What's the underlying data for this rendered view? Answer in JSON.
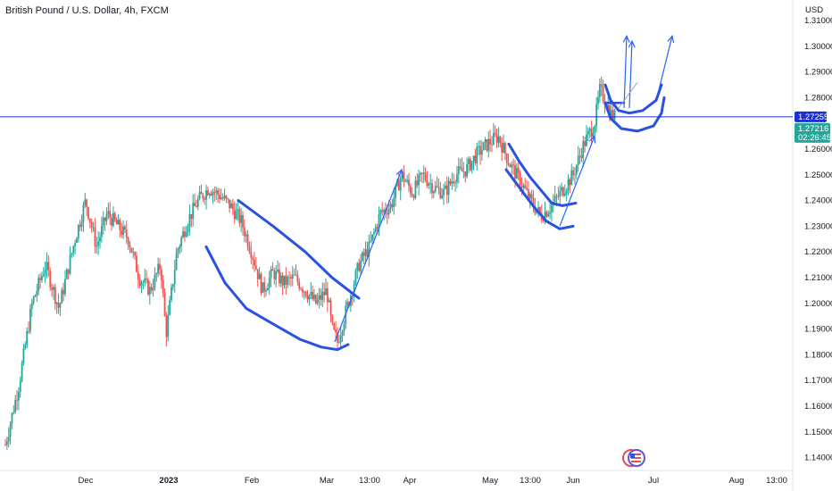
{
  "header": {
    "title": "British Pound / U.S. Dollar, 4h, FXCM"
  },
  "axis": {
    "currency": "USD",
    "price_line": "1.27255",
    "last_price": "1.27216",
    "countdown": "02:26:45"
  },
  "colors": {
    "up": "#26a69a",
    "down": "#ef5350",
    "drawing": "#2952e3",
    "arrow": "#2962ff",
    "price_line": "#1c2fd3",
    "last_tag": "#26a69a"
  },
  "chart_data": {
    "type": "candlestick",
    "symbol": "GBPUSD",
    "timeframe": "4h",
    "ylim": [
      1.135,
      1.318
    ],
    "y_ticks": [
      {
        "label": "1.31000",
        "value": 1.31
      },
      {
        "label": "1.30000",
        "value": 1.3
      },
      {
        "label": "1.29000",
        "value": 1.29
      },
      {
        "label": "1.28000",
        "value": 1.28
      },
      {
        "label": "1.26000",
        "value": 1.26
      },
      {
        "label": "1.25000",
        "value": 1.25
      },
      {
        "label": "1.24000",
        "value": 1.24
      },
      {
        "label": "1.23000",
        "value": 1.23
      },
      {
        "label": "1.22000",
        "value": 1.22
      },
      {
        "label": "1.21000",
        "value": 1.21
      },
      {
        "label": "1.20000",
        "value": 1.2
      },
      {
        "label": "1.19000",
        "value": 1.19
      },
      {
        "label": "1.18000",
        "value": 1.18
      },
      {
        "label": "1.17000",
        "value": 1.17
      },
      {
        "label": "1.16000",
        "value": 1.16
      },
      {
        "label": "1.15000",
        "value": 1.15
      },
      {
        "label": "1.14000",
        "value": 1.14
      }
    ],
    "x_ticks": [
      {
        "label": "Dec",
        "day": 30,
        "bold": false
      },
      {
        "label": "2023",
        "day": 61,
        "bold": true
      },
      {
        "label": "Feb",
        "day": 92,
        "bold": false
      },
      {
        "label": "Mar",
        "day": 120,
        "bold": false
      },
      {
        "label": "13:00",
        "day": 136,
        "bold": false
      },
      {
        "label": "Apr",
        "day": 151,
        "bold": false
      },
      {
        "label": "May",
        "day": 181,
        "bold": false
      },
      {
        "label": "13:00",
        "day": 196,
        "bold": false
      },
      {
        "label": "Jun",
        "day": 212,
        "bold": false
      },
      {
        "label": "Jul",
        "day": 242,
        "bold": false
      },
      {
        "label": "Aug",
        "day": 273,
        "bold": false
      },
      {
        "label": "13:00",
        "day": 288,
        "bold": false
      }
    ],
    "price_path": [
      [
        0,
        1.145
      ],
      [
        5,
        1.168
      ],
      [
        10,
        1.2
      ],
      [
        15,
        1.215
      ],
      [
        20,
        1.198
      ],
      [
        26,
        1.225
      ],
      [
        30,
        1.24
      ],
      [
        34,
        1.222
      ],
      [
        38,
        1.235
      ],
      [
        42,
        1.23
      ],
      [
        46,
        1.225
      ],
      [
        50,
        1.21
      ],
      [
        54,
        1.205
      ],
      [
        58,
        1.215
      ],
      [
        60,
        1.188
      ],
      [
        64,
        1.22
      ],
      [
        68,
        1.232
      ],
      [
        72,
        1.24
      ],
      [
        76,
        1.245
      ],
      [
        80,
        1.242
      ],
      [
        84,
        1.238
      ],
      [
        88,
        1.232
      ],
      [
        92,
        1.22
      ],
      [
        96,
        1.205
      ],
      [
        100,
        1.212
      ],
      [
        104,
        1.208
      ],
      [
        108,
        1.21
      ],
      [
        112,
        1.205
      ],
      [
        116,
        1.2
      ],
      [
        120,
        1.205
      ],
      [
        122,
        1.19
      ],
      [
        124,
        1.185
      ],
      [
        128,
        1.2
      ],
      [
        132,
        1.215
      ],
      [
        136,
        1.222
      ],
      [
        140,
        1.235
      ],
      [
        144,
        1.238
      ],
      [
        148,
        1.25
      ],
      [
        152,
        1.243
      ],
      [
        156,
        1.25
      ],
      [
        160,
        1.245
      ],
      [
        164,
        1.243
      ],
      [
        168,
        1.25
      ],
      [
        172,
        1.252
      ],
      [
        176,
        1.258
      ],
      [
        180,
        1.262
      ],
      [
        184,
        1.265
      ],
      [
        188,
        1.255
      ],
      [
        192,
        1.248
      ],
      [
        196,
        1.24
      ],
      [
        200,
        1.234
      ],
      [
        204,
        1.238
      ],
      [
        208,
        1.244
      ],
      [
        212,
        1.25
      ],
      [
        216,
        1.262
      ],
      [
        220,
        1.27
      ],
      [
        222,
        1.283
      ],
      [
        224,
        1.279
      ],
      [
        226,
        1.274
      ],
      [
        228,
        1.272
      ]
    ],
    "last_price": 1.27216,
    "price_line": 1.27255
  },
  "icons": {
    "logo": "tradingview-logo-icon"
  }
}
